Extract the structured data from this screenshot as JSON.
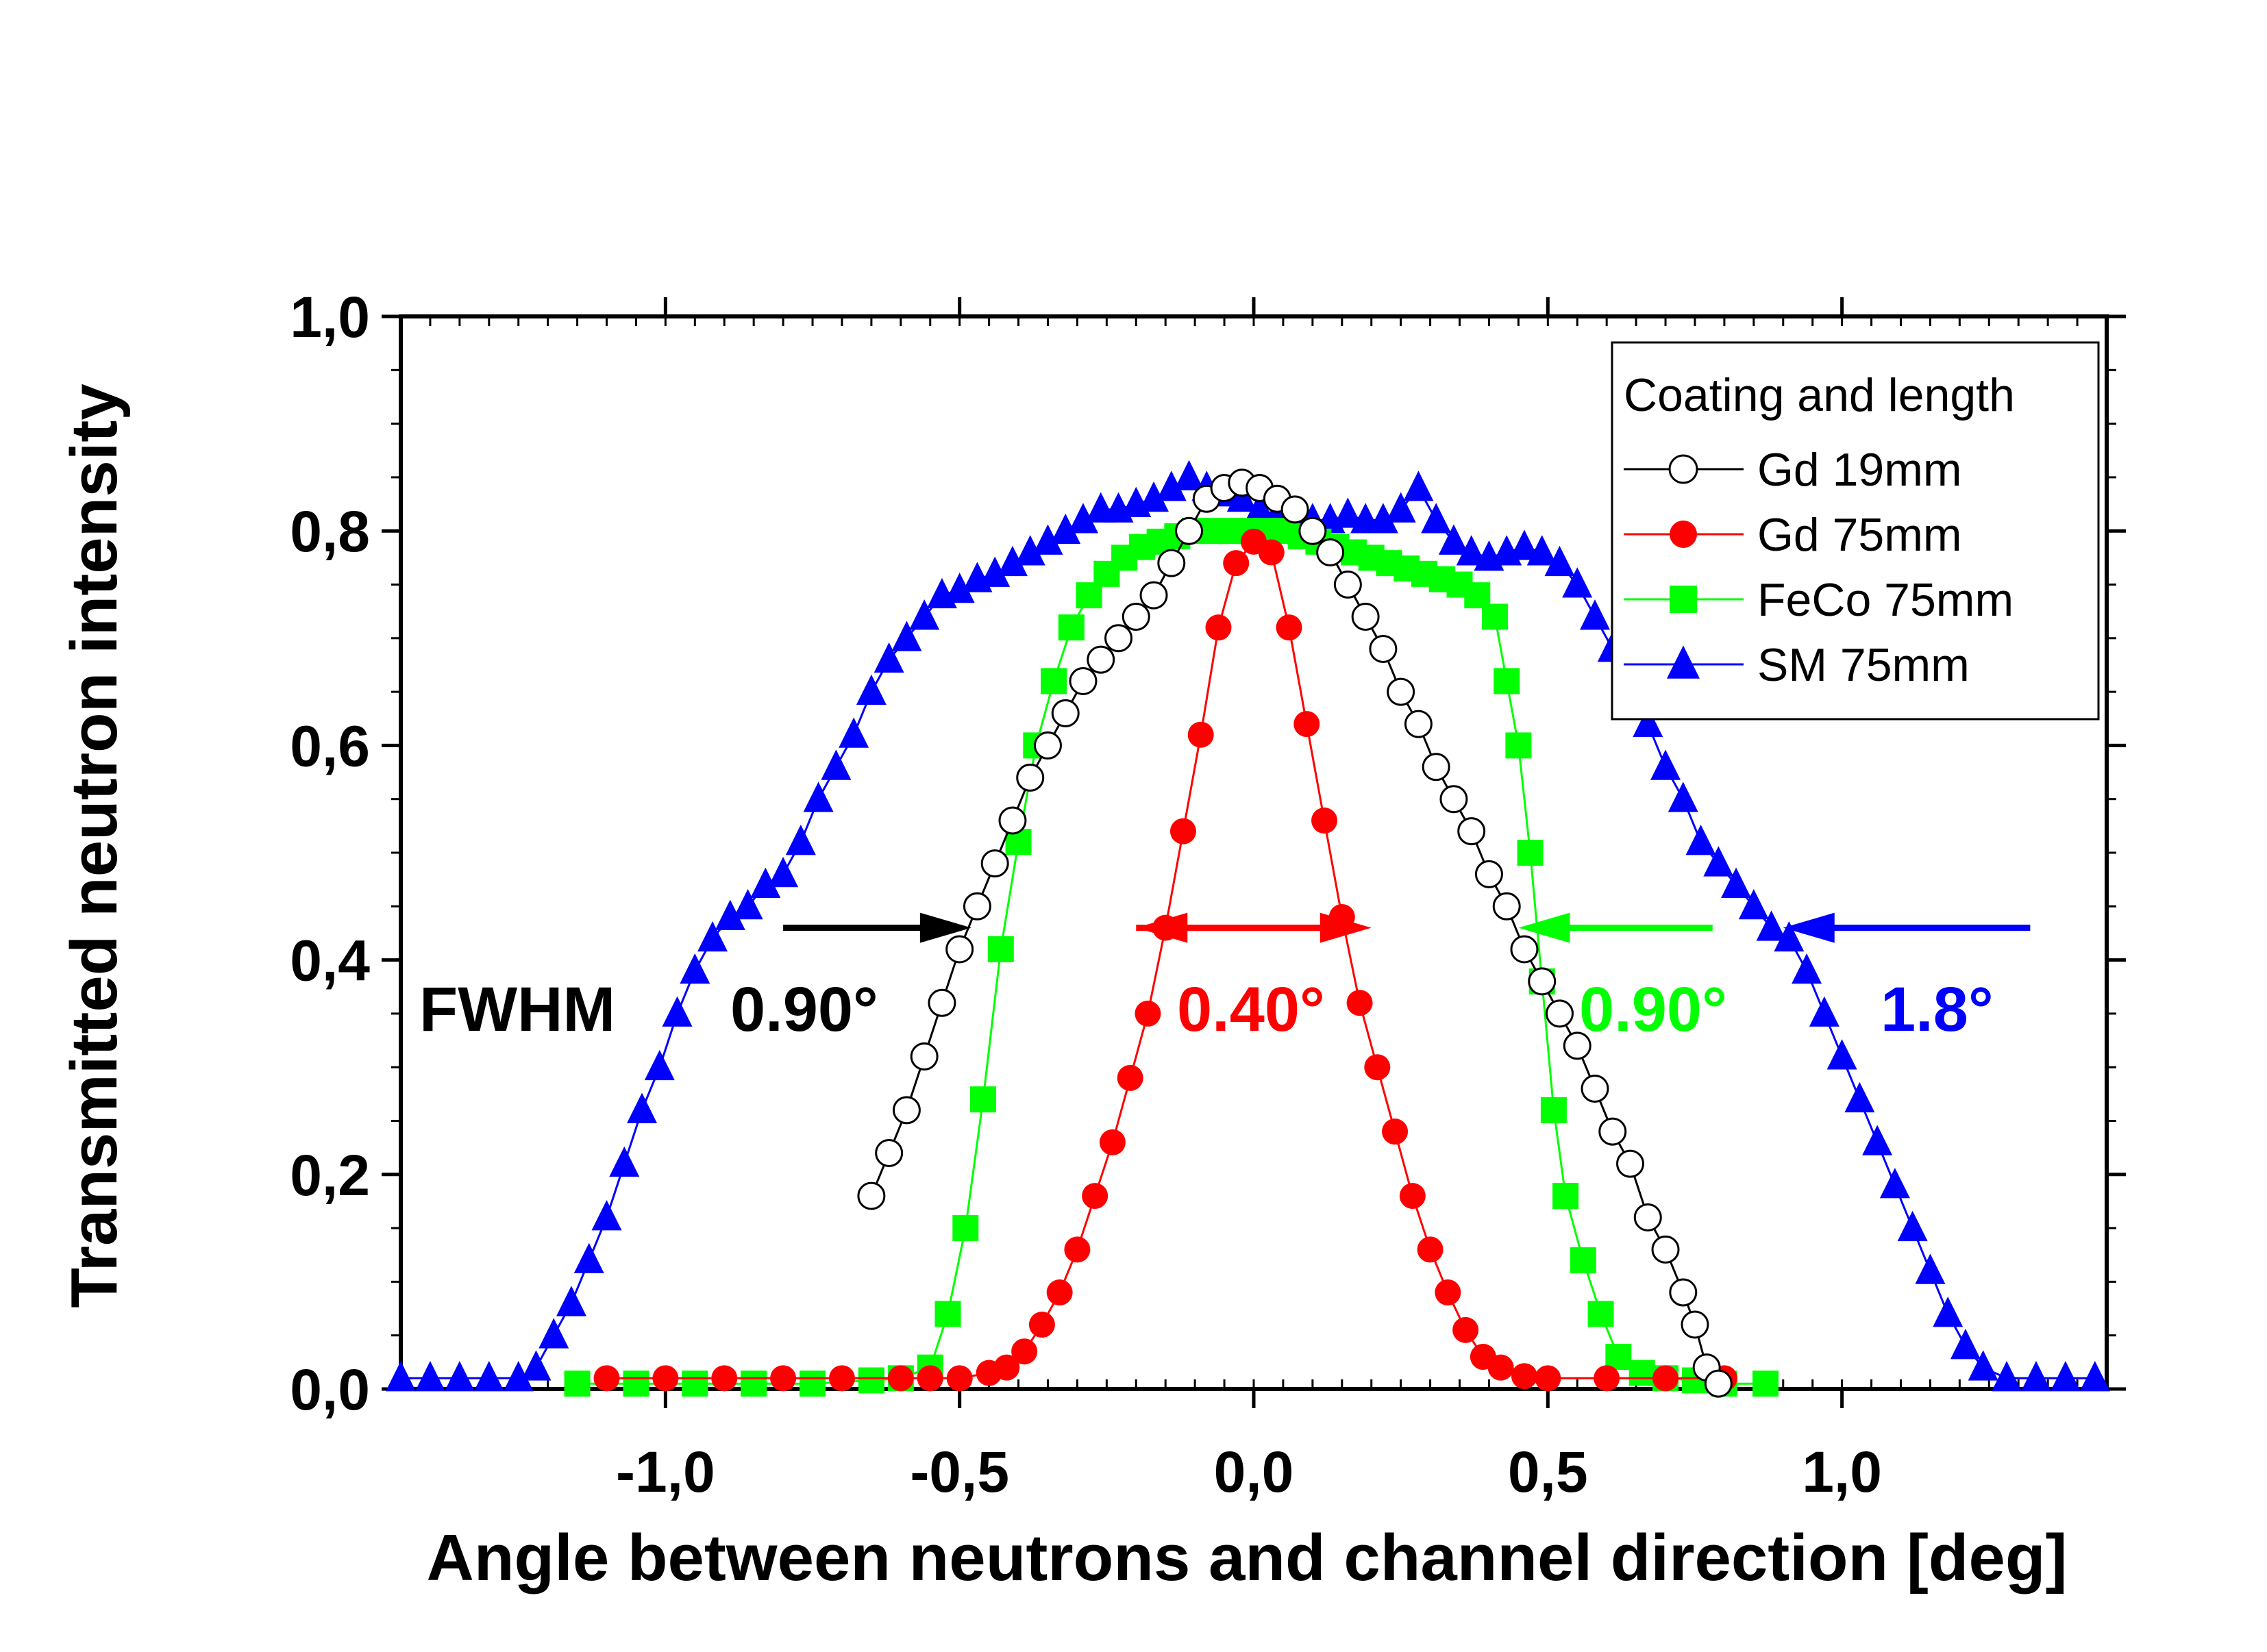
{
  "chart_data": {
    "type": "scatter",
    "xlabel": "Angle between neutrons and channel direction [deg]",
    "ylabel": "Transmitted neutron intensity",
    "xlim": [
      -1.45,
      1.45
    ],
    "ylim": [
      0.0,
      1.0
    ],
    "x_ticks": [
      "-1,0",
      "-0,5",
      "0,0",
      "0,5",
      "1,0"
    ],
    "x_tick_values": [
      -1.0,
      -0.5,
      0.0,
      0.5,
      1.0
    ],
    "y_ticks": [
      "0,0",
      "0,2",
      "0,4",
      "0,6",
      "0,8",
      "1,0"
    ],
    "y_tick_values": [
      0.0,
      0.2,
      0.4,
      0.6,
      0.8,
      1.0
    ],
    "legend": {
      "title": "Coating and length",
      "placement": "top-right"
    },
    "series": [
      {
        "name": "Gd 19mm",
        "color": "#000000",
        "marker": "open-circle",
        "points": [
          [
            -0.65,
            0.18
          ],
          [
            -0.62,
            0.22
          ],
          [
            -0.59,
            0.26
          ],
          [
            -0.56,
            0.31
          ],
          [
            -0.53,
            0.36
          ],
          [
            -0.5,
            0.41
          ],
          [
            -0.47,
            0.45
          ],
          [
            -0.44,
            0.49
          ],
          [
            -0.41,
            0.53
          ],
          [
            -0.38,
            0.57
          ],
          [
            -0.35,
            0.6
          ],
          [
            -0.32,
            0.63
          ],
          [
            -0.29,
            0.66
          ],
          [
            -0.26,
            0.68
          ],
          [
            -0.23,
            0.7
          ],
          [
            -0.2,
            0.72
          ],
          [
            -0.17,
            0.74
          ],
          [
            -0.14,
            0.77
          ],
          [
            -0.11,
            0.8
          ],
          [
            -0.08,
            0.83
          ],
          [
            -0.05,
            0.84
          ],
          [
            -0.02,
            0.845
          ],
          [
            0.01,
            0.84
          ],
          [
            0.04,
            0.83
          ],
          [
            0.07,
            0.82
          ],
          [
            0.1,
            0.8
          ],
          [
            0.13,
            0.78
          ],
          [
            0.16,
            0.75
          ],
          [
            0.19,
            0.72
          ],
          [
            0.22,
            0.69
          ],
          [
            0.25,
            0.65
          ],
          [
            0.28,
            0.62
          ],
          [
            0.31,
            0.58
          ],
          [
            0.34,
            0.55
          ],
          [
            0.37,
            0.52
          ],
          [
            0.4,
            0.48
          ],
          [
            0.43,
            0.45
          ],
          [
            0.46,
            0.41
          ],
          [
            0.49,
            0.38
          ],
          [
            0.52,
            0.35
          ],
          [
            0.55,
            0.32
          ],
          [
            0.58,
            0.28
          ],
          [
            0.61,
            0.24
          ],
          [
            0.64,
            0.21
          ],
          [
            0.67,
            0.16
          ],
          [
            0.7,
            0.13
          ],
          [
            0.73,
            0.09
          ],
          [
            0.75,
            0.06
          ],
          [
            0.77,
            0.02
          ],
          [
            0.79,
            0.005
          ]
        ]
      },
      {
        "name": "Gd 75mm",
        "color": "#ff0000",
        "marker": "filled-circle",
        "points": [
          [
            -1.1,
            0.01
          ],
          [
            -1.0,
            0.01
          ],
          [
            -0.9,
            0.01
          ],
          [
            -0.8,
            0.01
          ],
          [
            -0.7,
            0.01
          ],
          [
            -0.6,
            0.01
          ],
          [
            -0.55,
            0.01
          ],
          [
            -0.5,
            0.01
          ],
          [
            -0.45,
            0.015
          ],
          [
            -0.42,
            0.02
          ],
          [
            -0.39,
            0.035
          ],
          [
            -0.36,
            0.06
          ],
          [
            -0.33,
            0.09
          ],
          [
            -0.3,
            0.13
          ],
          [
            -0.27,
            0.18
          ],
          [
            -0.24,
            0.23
          ],
          [
            -0.21,
            0.29
          ],
          [
            -0.18,
            0.35
          ],
          [
            -0.15,
            0.43
          ],
          [
            -0.12,
            0.52
          ],
          [
            -0.09,
            0.61
          ],
          [
            -0.06,
            0.71
          ],
          [
            -0.03,
            0.77
          ],
          [
            0.0,
            0.79
          ],
          [
            0.03,
            0.78
          ],
          [
            0.06,
            0.71
          ],
          [
            0.09,
            0.62
          ],
          [
            0.12,
            0.53
          ],
          [
            0.15,
            0.44
          ],
          [
            0.18,
            0.36
          ],
          [
            0.21,
            0.3
          ],
          [
            0.24,
            0.24
          ],
          [
            0.27,
            0.18
          ],
          [
            0.3,
            0.13
          ],
          [
            0.33,
            0.09
          ],
          [
            0.36,
            0.055
          ],
          [
            0.39,
            0.03
          ],
          [
            0.42,
            0.02
          ],
          [
            0.46,
            0.012
          ],
          [
            0.5,
            0.01
          ],
          [
            0.6,
            0.01
          ],
          [
            0.7,
            0.01
          ],
          [
            0.8,
            0.01
          ]
        ]
      },
      {
        "name": "FeCo 75mm",
        "color": "#00ff00",
        "marker": "filled-square",
        "points": [
          [
            -1.15,
            0.005
          ],
          [
            -1.05,
            0.005
          ],
          [
            -0.95,
            0.005
          ],
          [
            -0.85,
            0.005
          ],
          [
            -0.75,
            0.005
          ],
          [
            -0.65,
            0.008
          ],
          [
            -0.6,
            0.01
          ],
          [
            -0.55,
            0.02
          ],
          [
            -0.52,
            0.07
          ],
          [
            -0.49,
            0.15
          ],
          [
            -0.46,
            0.27
          ],
          [
            -0.43,
            0.41
          ],
          [
            -0.4,
            0.51
          ],
          [
            -0.37,
            0.6
          ],
          [
            -0.34,
            0.66
          ],
          [
            -0.31,
            0.71
          ],
          [
            -0.28,
            0.74
          ],
          [
            -0.25,
            0.76
          ],
          [
            -0.22,
            0.775
          ],
          [
            -0.19,
            0.785
          ],
          [
            -0.16,
            0.79
          ],
          [
            -0.13,
            0.795
          ],
          [
            -0.1,
            0.8
          ],
          [
            -0.07,
            0.8
          ],
          [
            -0.04,
            0.8
          ],
          [
            -0.01,
            0.8
          ],
          [
            0.02,
            0.8
          ],
          [
            0.05,
            0.8
          ],
          [
            0.08,
            0.795
          ],
          [
            0.11,
            0.79
          ],
          [
            0.14,
            0.785
          ],
          [
            0.17,
            0.78
          ],
          [
            0.2,
            0.775
          ],
          [
            0.23,
            0.77
          ],
          [
            0.26,
            0.765
          ],
          [
            0.29,
            0.76
          ],
          [
            0.32,
            0.755
          ],
          [
            0.35,
            0.75
          ],
          [
            0.38,
            0.74
          ],
          [
            0.41,
            0.72
          ],
          [
            0.43,
            0.66
          ],
          [
            0.45,
            0.6
          ],
          [
            0.47,
            0.5
          ],
          [
            0.49,
            0.38
          ],
          [
            0.51,
            0.26
          ],
          [
            0.53,
            0.18
          ],
          [
            0.56,
            0.12
          ],
          [
            0.59,
            0.07
          ],
          [
            0.62,
            0.03
          ],
          [
            0.66,
            0.015
          ],
          [
            0.7,
            0.01
          ],
          [
            0.75,
            0.008
          ],
          [
            0.8,
            0.005
          ],
          [
            0.87,
            0.005
          ]
        ]
      },
      {
        "name": "SM 75mm",
        "color": "#0000ff",
        "marker": "filled-triangle",
        "points": [
          [
            -1.45,
            0.01
          ],
          [
            -1.4,
            0.01
          ],
          [
            -1.35,
            0.01
          ],
          [
            -1.3,
            0.01
          ],
          [
            -1.25,
            0.01
          ],
          [
            -1.22,
            0.02
          ],
          [
            -1.19,
            0.05
          ],
          [
            -1.16,
            0.08
          ],
          [
            -1.13,
            0.12
          ],
          [
            -1.1,
            0.16
          ],
          [
            -1.07,
            0.21
          ],
          [
            -1.04,
            0.26
          ],
          [
            -1.01,
            0.3
          ],
          [
            -0.98,
            0.35
          ],
          [
            -0.95,
            0.39
          ],
          [
            -0.92,
            0.42
          ],
          [
            -0.89,
            0.44
          ],
          [
            -0.86,
            0.45
          ],
          [
            -0.83,
            0.47
          ],
          [
            -0.8,
            0.48
          ],
          [
            -0.77,
            0.51
          ],
          [
            -0.74,
            0.55
          ],
          [
            -0.71,
            0.58
          ],
          [
            -0.68,
            0.61
          ],
          [
            -0.65,
            0.65
          ],
          [
            -0.62,
            0.68
          ],
          [
            -0.59,
            0.7
          ],
          [
            -0.56,
            0.72
          ],
          [
            -0.53,
            0.74
          ],
          [
            -0.5,
            0.745
          ],
          [
            -0.47,
            0.755
          ],
          [
            -0.44,
            0.76
          ],
          [
            -0.41,
            0.77
          ],
          [
            -0.38,
            0.78
          ],
          [
            -0.35,
            0.79
          ],
          [
            -0.32,
            0.8
          ],
          [
            -0.29,
            0.81
          ],
          [
            -0.26,
            0.82
          ],
          [
            -0.23,
            0.82
          ],
          [
            -0.2,
            0.825
          ],
          [
            -0.17,
            0.83
          ],
          [
            -0.14,
            0.84
          ],
          [
            -0.11,
            0.85
          ],
          [
            -0.08,
            0.84
          ],
          [
            -0.05,
            0.835
          ],
          [
            -0.02,
            0.83
          ],
          [
            0.01,
            0.82
          ],
          [
            0.04,
            0.815
          ],
          [
            0.07,
            0.81
          ],
          [
            0.1,
            0.81
          ],
          [
            0.13,
            0.81
          ],
          [
            0.16,
            0.815
          ],
          [
            0.19,
            0.81
          ],
          [
            0.22,
            0.81
          ],
          [
            0.25,
            0.82
          ],
          [
            0.28,
            0.84
          ],
          [
            0.31,
            0.81
          ],
          [
            0.34,
            0.79
          ],
          [
            0.37,
            0.78
          ],
          [
            0.4,
            0.775
          ],
          [
            0.43,
            0.78
          ],
          [
            0.46,
            0.785
          ],
          [
            0.49,
            0.78
          ],
          [
            0.52,
            0.77
          ],
          [
            0.55,
            0.75
          ],
          [
            0.58,
            0.72
          ],
          [
            0.61,
            0.69
          ],
          [
            0.64,
            0.66
          ],
          [
            0.67,
            0.62
          ],
          [
            0.7,
            0.58
          ],
          [
            0.73,
            0.55
          ],
          [
            0.76,
            0.51
          ],
          [
            0.79,
            0.49
          ],
          [
            0.82,
            0.47
          ],
          [
            0.85,
            0.45
          ],
          [
            0.88,
            0.43
          ],
          [
            0.91,
            0.42
          ],
          [
            0.94,
            0.39
          ],
          [
            0.97,
            0.35
          ],
          [
            1.0,
            0.31
          ],
          [
            1.03,
            0.27
          ],
          [
            1.06,
            0.23
          ],
          [
            1.09,
            0.19
          ],
          [
            1.12,
            0.15
          ],
          [
            1.15,
            0.11
          ],
          [
            1.18,
            0.07
          ],
          [
            1.21,
            0.04
          ],
          [
            1.24,
            0.02
          ],
          [
            1.28,
            0.01
          ],
          [
            1.33,
            0.01
          ],
          [
            1.38,
            0.01
          ],
          [
            1.43,
            0.01
          ]
        ]
      }
    ],
    "annotations": [
      {
        "text": "FWHM",
        "color": "#000000"
      },
      {
        "text": "0.90°",
        "color": "#000000"
      },
      {
        "text": "0.40°",
        "color": "#ff0000"
      },
      {
        "text": "0.90°",
        "color": "#00ff00"
      },
      {
        "text": "1.8°",
        "color": "#0000ff"
      }
    ],
    "fwhm_arrows": [
      {
        "series": "Gd 19mm",
        "color": "#000000",
        "y": 0.43,
        "from_x": -0.8,
        "to_x": -0.48
      },
      {
        "series": "Gd 75mm",
        "color": "#ff0000",
        "y": 0.43,
        "from_x": -0.2,
        "to_x": 0.2,
        "double": true
      },
      {
        "series": "FeCo 75mm",
        "color": "#00ff00",
        "y": 0.43,
        "from_x": 0.78,
        "to_x": 0.45
      },
      {
        "series": "SM 75mm",
        "color": "#0000ff",
        "y": 0.43,
        "from_x": 1.32,
        "to_x": 0.9
      }
    ]
  }
}
